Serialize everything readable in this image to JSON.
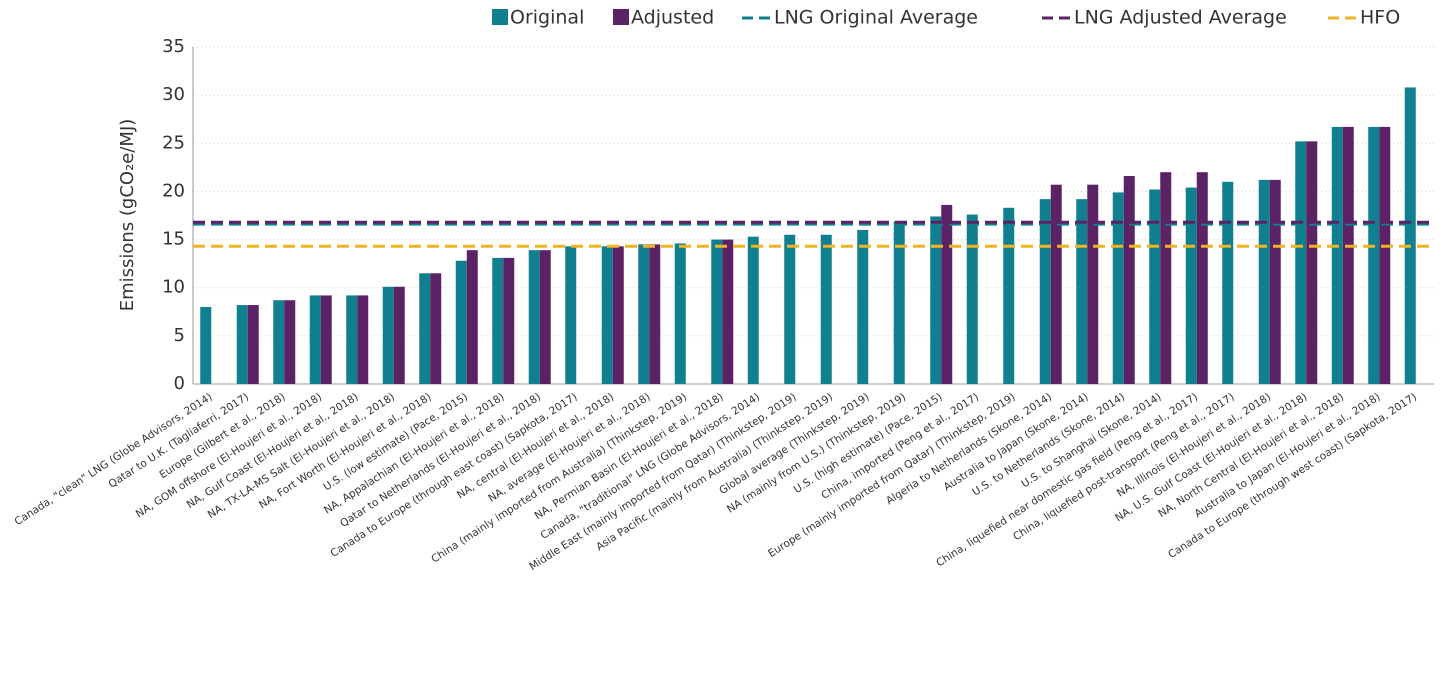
{
  "chart_data": {
    "type": "bar",
    "y_label": "Emissions (gCO₂e/MJ)",
    "categories": [
      "Canada, \"clean\" LNG (Globe Advisors, 2014)",
      "Qatar to U.K. (Tagliaferri, 2017)",
      "Europe (Gilbert et al., 2018)",
      "NA, GOM offshore (El-Houjeri et al., 2018)",
      "NA, Gulf Coast (El-Houjeri et al., 2018)",
      "NA, TX-LA-MS Salt (El-Houjeri et al., 2018)",
      "NA, Fort Worth (El-Houjeri et al., 2018)",
      "U.S. (low estimate) (Pace, 2015)",
      "NA, Appalachian (El-Houjeri et al., 2018)",
      "Qatar to Netherlands (El-Houjeri et al., 2018)",
      "Canada to Europe (through east coast) (Sapkota, 2017)",
      "NA, central (El-Houjeri et al., 2018)",
      "NA, average (El-Houjeri et al., 2018)",
      "China (mainly imported from Australia) (Thinkstep, 2019)",
      "NA, Permian Basin (El-Houjeri et al., 2018)",
      "Canada, \"traditional\" LNG (Globe Advisors, 2014)",
      "Middle East (mainly imported from Qatar) (Thinkstep, 2019)",
      "Asia Pacific (mainly from Australia) (Thinkstep, 2019)",
      "Global average (Thinkstep, 2019)",
      "NA (mainly from U.S.) (Thinkstep, 2019)",
      "U.S. (high estimate) (Pace, 2015)",
      "China, imported (Peng et al., 2017)",
      "Europe (mainly imported from Qatar) (Thinkstep, 2019)",
      "Algeria to Netherlands (Skone, 2014)",
      "Australia to Japan (Skone, 2014)",
      "U.S. to Netherlands (Skone, 2014)",
      "U.S. to Shanghai (Skone, 2014)",
      "China, liquefied near domestic gas field (Peng et al., 2017)",
      "China, liquefied post-transport (Peng et al., 2017)",
      "NA, Illinois (El-Houjeri et al., 2018)",
      "NA, U.S. Gulf Coast (El-Houjeri et al., 2018)",
      "NA, North Central (El-Houjeri et al., 2018)",
      "Australia to Japan (El-Houjeri et al., 2018)",
      "Canada to Europe (through west coast) (Sapkota, 2017)"
    ],
    "series": [
      {
        "name": "Original",
        "color": "#107f8f",
        "values": [
          8.0,
          8.2,
          8.7,
          9.2,
          9.2,
          10.1,
          11.5,
          12.8,
          13.1,
          13.9,
          14.3,
          14.3,
          14.5,
          14.6,
          15.0,
          15.3,
          15.5,
          15.5,
          16.0,
          16.9,
          17.4,
          17.6,
          18.3,
          19.2,
          19.2,
          19.9,
          20.2,
          20.4,
          21.0,
          21.2,
          25.2,
          26.7,
          26.7,
          30.8
        ]
      },
      {
        "name": "Adjusted",
        "color": "#5c2266",
        "values": [
          null,
          8.2,
          8.7,
          9.2,
          9.2,
          10.1,
          11.5,
          13.9,
          13.1,
          13.9,
          null,
          14.3,
          14.5,
          null,
          15.0,
          null,
          null,
          null,
          null,
          null,
          18.6,
          null,
          null,
          20.7,
          20.7,
          21.6,
          22.0,
          22.0,
          null,
          21.2,
          25.2,
          26.7,
          26.7,
          null
        ]
      }
    ],
    "reference_lines": [
      {
        "name": "LNG Original Average",
        "value": 16.6,
        "color": "#107f8f"
      },
      {
        "name": "LNG Adjusted Average",
        "value": 16.8,
        "color": "#5c2266"
      },
      {
        "name": "HFO",
        "value": 14.3,
        "color": "#f0b323"
      }
    ],
    "ylim": [
      0,
      35
    ],
    "yticks": [
      0,
      5,
      10,
      15,
      20,
      25,
      30,
      35
    ],
    "grid": true,
    "legend": "top"
  }
}
